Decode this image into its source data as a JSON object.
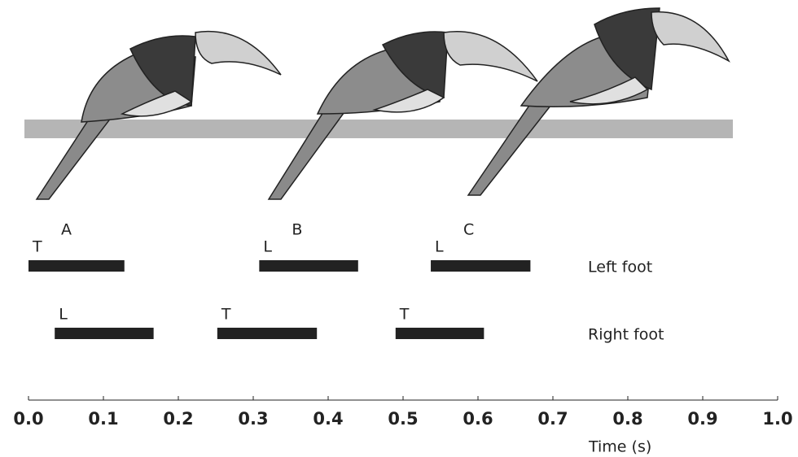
{
  "chart_data": {
    "type": "gait",
    "xlabel": "Time (s)",
    "xlim": [
      0,
      1
    ],
    "xticks": [
      {
        "value": 0,
        "label": "0.0"
      },
      0.1,
      0.2,
      0.3,
      0.4,
      0.5,
      0.6,
      0.7,
      0.8,
      0.9,
      {
        "value": 1,
        "label": "1.0"
      }
    ],
    "phases": [
      "A",
      "B",
      "C"
    ],
    "series": [
      {
        "name": "Left foot",
        "color": "#222222",
        "starts": [
          0.0,
          0.308,
          0.537
        ],
        "ends": [
          0.128,
          0.44,
          0.67
        ],
        "labels": [
          "T",
          "L",
          "L"
        ]
      },
      {
        "name": "Right foot",
        "color": "#222222",
        "starts": [
          0.035,
          0.252,
          0.49
        ],
        "ends": [
          0.167,
          0.385,
          0.608
        ],
        "labels": [
          "L",
          "T",
          "T"
        ]
      }
    ]
  }
}
